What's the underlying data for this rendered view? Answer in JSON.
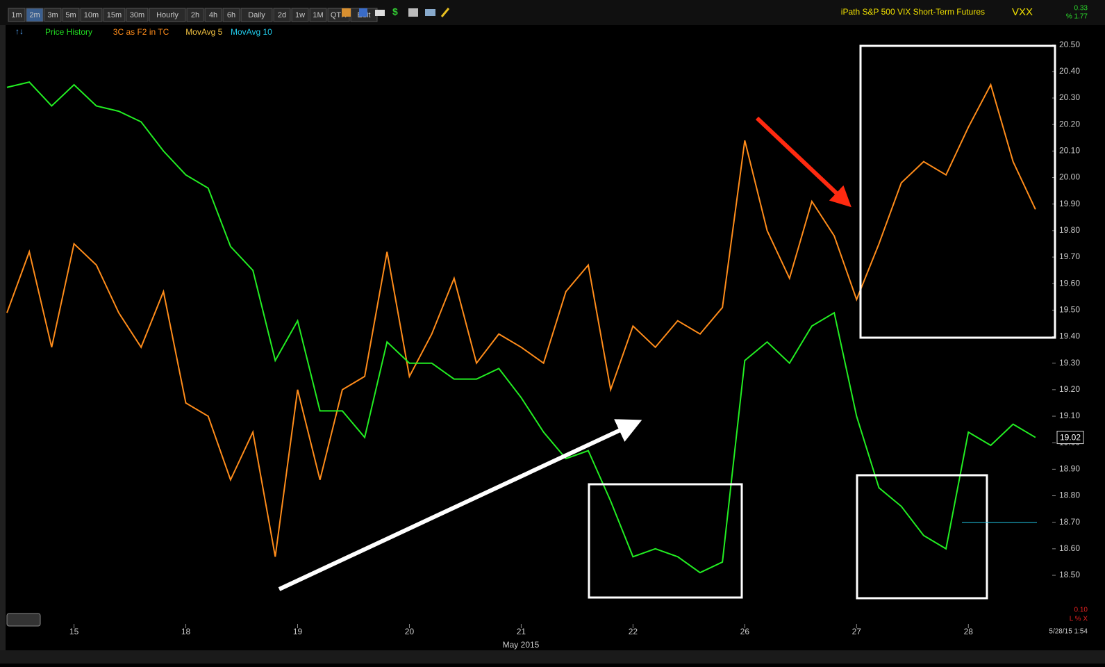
{
  "toolbar": {
    "buttons": [
      "1m",
      "2m",
      "3m",
      "5m",
      "10m",
      "15m",
      "30m",
      "Hourly",
      "2h",
      "4h",
      "6h",
      "Daily",
      "2d",
      "1w",
      "1M",
      "QTR",
      "Edit"
    ]
  },
  "header": {
    "name": "iPath S&P 500 VIX Short-Term Futures",
    "symbol": "VXX",
    "change": "0.33",
    "change_pct": "% 1.77"
  },
  "footer": {
    "timestamp": "5/28/15 1:54",
    "lower_value": "0.10",
    "lower_flags": "L % X"
  },
  "chart_data": {
    "type": "line",
    "legend": [
      "Price History",
      "3C as F2 in TC",
      "MovAvg 5",
      "MovAvg 10"
    ],
    "legend_colors": [
      "#22dd22",
      "#ff8c1a",
      "#f0c040",
      "#20c8e8"
    ],
    "x_label": "May 2015",
    "x": [
      -0.6,
      -0.4,
      -0.2,
      0,
      0.2,
      0.4,
      0.6,
      0.8,
      1,
      1.2,
      1.4,
      1.6,
      1.8,
      2,
      2.2,
      2.4,
      2.6,
      2.8,
      3,
      3.2,
      3.4,
      3.6,
      3.8,
      4,
      4.2,
      4.4,
      4.6,
      4.8,
      5,
      5.2,
      5.4,
      5.6,
      5.8,
      6,
      6.2,
      6.4,
      6.6,
      6.8,
      7,
      7.2,
      7.4,
      7.6,
      7.8,
      8,
      8.2,
      8.4,
      8.6
    ],
    "series": [
      {
        "name": "Price History",
        "color": "#22ee22",
        "values": [
          20.34,
          20.36,
          20.27,
          20.35,
          20.27,
          20.25,
          20.21,
          20.1,
          20.01,
          19.96,
          19.74,
          19.65,
          19.31,
          19.46,
          19.12,
          19.12,
          19.02,
          19.38,
          19.3,
          19.3,
          19.24,
          19.24,
          19.28,
          19.17,
          19.04,
          18.94,
          18.97,
          18.78,
          18.57,
          18.6,
          18.57,
          18.51,
          18.55,
          19.31,
          19.38,
          19.3,
          19.44,
          19.49,
          19.1,
          18.83,
          18.76,
          18.65,
          18.6,
          19.04,
          18.99,
          19.07,
          19.02
        ]
      },
      {
        "name": "3C as F2 in TC",
        "color": "#ff8c1a",
        "values": [
          19.49,
          19.72,
          19.36,
          19.75,
          19.67,
          19.49,
          19.36,
          19.57,
          19.15,
          19.1,
          18.86,
          19.04,
          18.57,
          19.2,
          18.86,
          19.2,
          19.25,
          19.72,
          19.25,
          19.41,
          19.62,
          19.3,
          19.41,
          19.36,
          19.3,
          19.57,
          19.67,
          19.2,
          19.44,
          19.36,
          19.46,
          19.41,
          19.51,
          20.14,
          19.8,
          19.62,
          19.91,
          19.78,
          19.54,
          19.75,
          19.98,
          20.06,
          20.01,
          20.19,
          20.35,
          20.06,
          19.88
        ]
      }
    ],
    "last_value": 19.02,
    "xlim": [
      -0.6,
      8.75
    ],
    "xticks": [
      {
        "value": 0,
        "label": "15"
      },
      {
        "value": 1,
        "label": "18"
      },
      {
        "value": 2,
        "label": "19"
      },
      {
        "value": 3,
        "label": "20"
      },
      {
        "value": 4,
        "label": "21"
      },
      {
        "value": 5,
        "label": "22"
      },
      {
        "value": 6,
        "label": "26"
      },
      {
        "value": 7,
        "label": "27"
      },
      {
        "value": 8,
        "label": "28"
      }
    ],
    "ylim": [
      18.39,
      20.57
    ],
    "yticks": [
      {
        "value": 18.5,
        "label": "18.50"
      },
      {
        "value": 18.6,
        "label": "18.60"
      },
      {
        "value": 18.7,
        "label": "18.70"
      },
      {
        "value": 18.8,
        "label": "18.80"
      },
      {
        "value": 18.9,
        "label": "18.90"
      },
      {
        "value": 19.0,
        "label": "19.00"
      },
      {
        "value": 19.1,
        "label": "19.10"
      },
      {
        "value": 19.2,
        "label": "19.20"
      },
      {
        "value": 19.3,
        "label": "19.30"
      },
      {
        "value": 19.4,
        "label": "19.40"
      },
      {
        "value": 19.5,
        "label": "19.50"
      },
      {
        "value": 19.6,
        "label": "19.60"
      },
      {
        "value": 19.7,
        "label": "19.70"
      },
      {
        "value": 19.8,
        "label": "19.80"
      },
      {
        "value": 19.9,
        "label": "19.90"
      },
      {
        "value": 20.0,
        "label": "20.00"
      },
      {
        "value": 20.1,
        "label": "20.10"
      },
      {
        "value": 20.2,
        "label": "20.20"
      },
      {
        "value": 20.3,
        "label": "20.30"
      },
      {
        "value": 20.4,
        "label": "20.40"
      },
      {
        "value": 20.5,
        "label": "20.50"
      }
    ],
    "grid": false
  }
}
